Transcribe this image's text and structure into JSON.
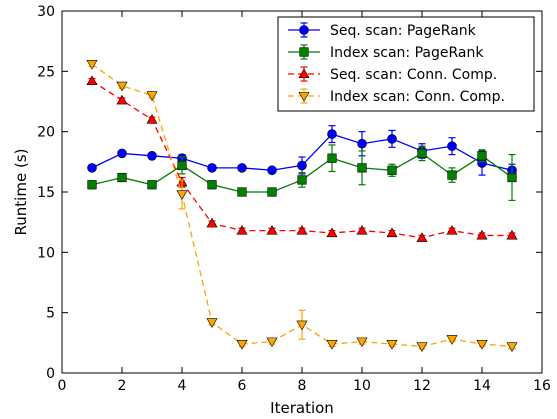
{
  "chart_data": {
    "type": "line",
    "xlabel": "Iteration",
    "ylabel": "Runtime (s)",
    "xlim": [
      0,
      16
    ],
    "ylim": [
      0,
      30
    ],
    "xticks": [
      0,
      2,
      4,
      6,
      8,
      10,
      12,
      14,
      16
    ],
    "yticks": [
      0,
      5,
      10,
      15,
      20,
      25,
      30
    ],
    "grid": false,
    "legend_position": "top-right",
    "x": [
      1,
      2,
      3,
      4,
      5,
      6,
      7,
      8,
      9,
      10,
      11,
      12,
      13,
      14,
      15
    ],
    "series": [
      {
        "name": "Seq. scan: PageRank",
        "color": "#0000ff",
        "marker": "circle",
        "linestyle": "solid",
        "values": [
          17.0,
          18.2,
          18.0,
          17.8,
          17.0,
          17.0,
          16.8,
          17.2,
          19.8,
          19.0,
          19.4,
          18.4,
          18.8,
          17.4,
          16.8
        ],
        "errors": [
          0.2,
          0.2,
          0.2,
          0.3,
          0.2,
          0.2,
          0.2,
          0.7,
          0.7,
          1.0,
          0.7,
          0.6,
          0.7,
          1.0,
          0.5
        ]
      },
      {
        "name": "Index scan: PageRank",
        "color": "#007f00",
        "marker": "square",
        "linestyle": "solid",
        "values": [
          15.6,
          16.2,
          15.6,
          17.2,
          15.6,
          15.0,
          15.0,
          16.0,
          17.8,
          17.0,
          16.8,
          18.2,
          16.4,
          18.0,
          16.2
        ],
        "errors": [
          0.2,
          0.2,
          0.2,
          0.7,
          0.2,
          0.2,
          0.2,
          0.6,
          1.1,
          1.4,
          0.5,
          0.6,
          0.6,
          0.5,
          1.9
        ]
      },
      {
        "name": "Seq. scan: Conn. Comp.",
        "color": "#ff0000",
        "marker": "triangle-up",
        "linestyle": "dashed",
        "values": [
          24.2,
          22.6,
          21.0,
          15.8,
          12.4,
          11.8,
          11.8,
          11.8,
          11.6,
          11.8,
          11.6,
          11.2,
          11.8,
          11.4,
          11.4
        ],
        "errors": [
          0.2,
          0.2,
          0.2,
          0.4,
          0.2,
          0.2,
          0.2,
          0.2,
          0.2,
          0.2,
          0.2,
          0.2,
          0.2,
          0.2,
          0.2
        ]
      },
      {
        "name": "Index scan: Conn. Comp.",
        "color": "#ffa500",
        "marker": "triangle-down",
        "linestyle": "dashed",
        "values": [
          25.6,
          23.8,
          23.0,
          14.8,
          4.2,
          2.4,
          2.6,
          4.0,
          2.4,
          2.6,
          2.4,
          2.2,
          2.8,
          2.4,
          2.2
        ],
        "errors": [
          0.2,
          0.2,
          0.2,
          1.2,
          0.2,
          0.2,
          0.2,
          1.2,
          0.2,
          0.2,
          0.2,
          0.2,
          0.2,
          0.2,
          0.2
        ]
      }
    ]
  }
}
